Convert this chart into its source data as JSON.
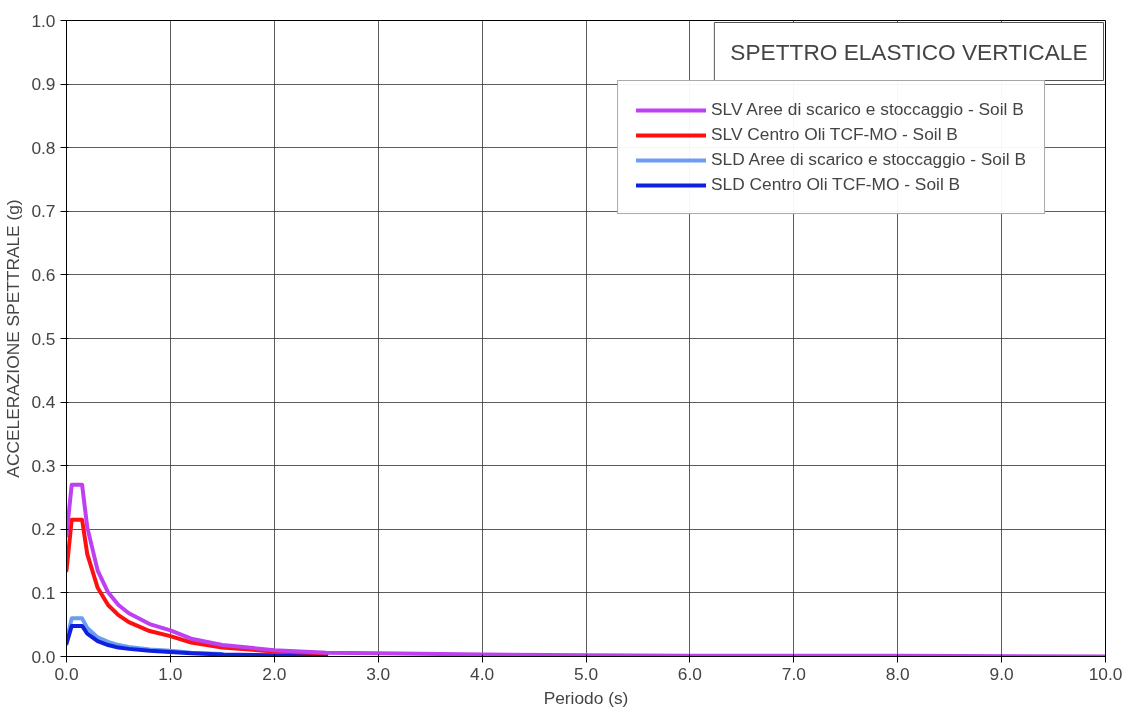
{
  "chart_data": {
    "type": "line",
    "title": "SPETTRO ELASTICO VERTICALE",
    "xlabel": "Periodo (s)",
    "ylabel": "ACCELERAZIONE SPETTRALE (g)",
    "x": [
      0,
      0.05,
      0.15,
      0.2,
      0.3,
      0.4,
      0.5,
      0.6,
      0.8,
      1.0,
      1.2,
      1.5,
      2.0,
      2.5,
      3.0,
      4.0,
      5.0,
      6.0,
      7.0,
      8.0,
      10.0
    ],
    "series": [
      {
        "name": "SLV Aree di scarico e stoccaggio - Soil B",
        "color": "#bf40f0",
        "values": [
          0.19,
          0.27,
          0.27,
          0.203,
          0.135,
          0.101,
          0.081,
          0.068,
          0.051,
          0.041,
          0.028,
          0.018,
          0.01,
          0.006,
          0.005,
          0.003,
          0.002,
          0.001,
          0.001,
          0.001,
          0.0
        ]
      },
      {
        "name": "SLV Centro Oli TCF-MO - Soil B",
        "color": "#ff1010",
        "values": [
          0.135,
          0.215,
          0.215,
          0.161,
          0.108,
          0.081,
          0.065,
          0.054,
          0.04,
          0.032,
          0.022,
          0.014,
          0.008,
          0.005,
          null,
          null,
          null,
          null,
          null,
          null,
          null
        ]
      },
      {
        "name": "SLD Aree di scarico e stoccaggio - Soil B",
        "color": "#6a9ef0",
        "values": [
          0.025,
          0.06,
          0.06,
          0.045,
          0.03,
          0.023,
          0.018,
          0.015,
          0.011,
          0.009,
          0.006,
          0.004,
          null,
          null,
          null,
          null,
          null,
          null,
          null,
          null,
          null
        ]
      },
      {
        "name": "SLD Centro Oli TCF-MO - Soil B",
        "color": "#1020e0",
        "values": [
          0.02,
          0.048,
          0.048,
          0.036,
          0.024,
          0.018,
          0.014,
          0.012,
          0.009,
          0.007,
          0.005,
          0.003,
          0.002,
          0.001,
          null,
          null,
          null,
          null,
          null,
          null,
          null
        ]
      }
    ],
    "xlim": [
      0,
      10
    ],
    "ylim": [
      0,
      1
    ],
    "xticks": [
      {
        "value": 0,
        "label": "0.0"
      },
      {
        "value": 1,
        "label": "1.0"
      },
      {
        "value": 2,
        "label": "2.0"
      },
      {
        "value": 3,
        "label": "3.0"
      },
      {
        "value": 4,
        "label": "4.0"
      },
      {
        "value": 5,
        "label": "5.0"
      },
      {
        "value": 6,
        "label": "6.0"
      },
      {
        "value": 7,
        "label": "7.0"
      },
      {
        "value": 8,
        "label": "8.0"
      },
      {
        "value": 9,
        "label": "9.0"
      },
      {
        "value": 10,
        "label": "10.0"
      }
    ],
    "yticks": [
      {
        "value": 0,
        "label": "0.0"
      },
      0.1,
      0.2,
      0.3,
      0.4,
      0.5,
      0.6,
      0.7,
      0.8,
      0.9,
      {
        "value": 1,
        "label": "1.0"
      }
    ],
    "grid": true,
    "legend": "top right",
    "marker": "none",
    "line_style": "solid"
  }
}
